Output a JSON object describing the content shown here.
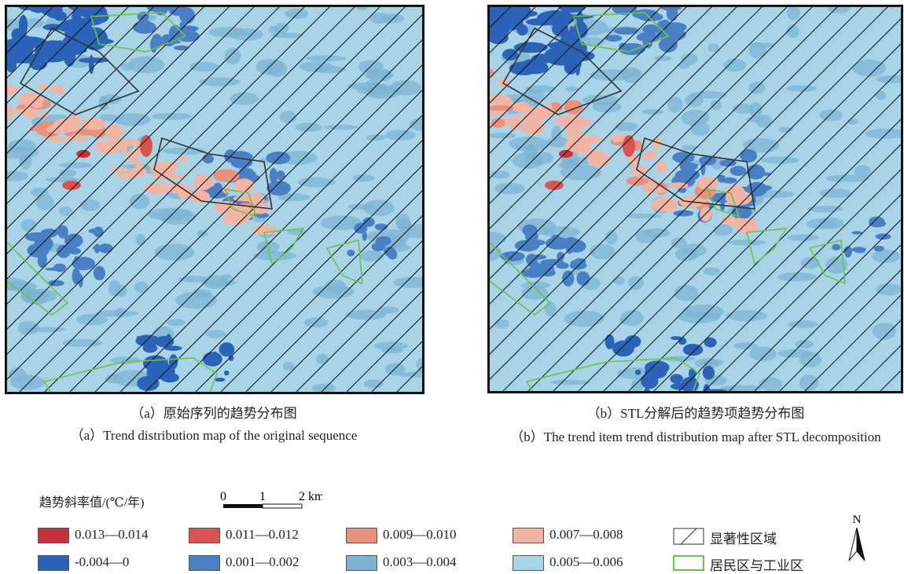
{
  "panels": [
    {
      "caption_zh": "（a）原始序列的趋势分布图",
      "caption_en": "（a）Trend distribution map of the original sequence"
    },
    {
      "caption_zh": "（b）STL分解后的趋势项趋势分布图",
      "caption_en": "（b）The trend item trend distribution map after STL decomposition"
    }
  ],
  "legend": {
    "title": "趋势斜率值/(℃/年)",
    "items": [
      {
        "label": "0.013—0.014",
        "color": "#c8313b"
      },
      {
        "label": "0.011—0.012",
        "color": "#d9534f"
      },
      {
        "label": "0.009—0.010",
        "color": "#e8917c"
      },
      {
        "label": "0.007—0.008",
        "color": "#f3b5a3"
      },
      {
        "label": "-0.004—0",
        "color": "#2c63b8"
      },
      {
        "label": "0.001—0.002",
        "color": "#4a7fc6"
      },
      {
        "label": "0.003—0.004",
        "color": "#7cb2d2"
      },
      {
        "label": "0.005—0.006",
        "color": "#a9d3e6"
      }
    ],
    "significant": "显著性区域",
    "residential": "居民区与工业区"
  },
  "scale_bar": {
    "labels": [
      "0",
      "1",
      "2 km"
    ]
  },
  "north": "N"
}
